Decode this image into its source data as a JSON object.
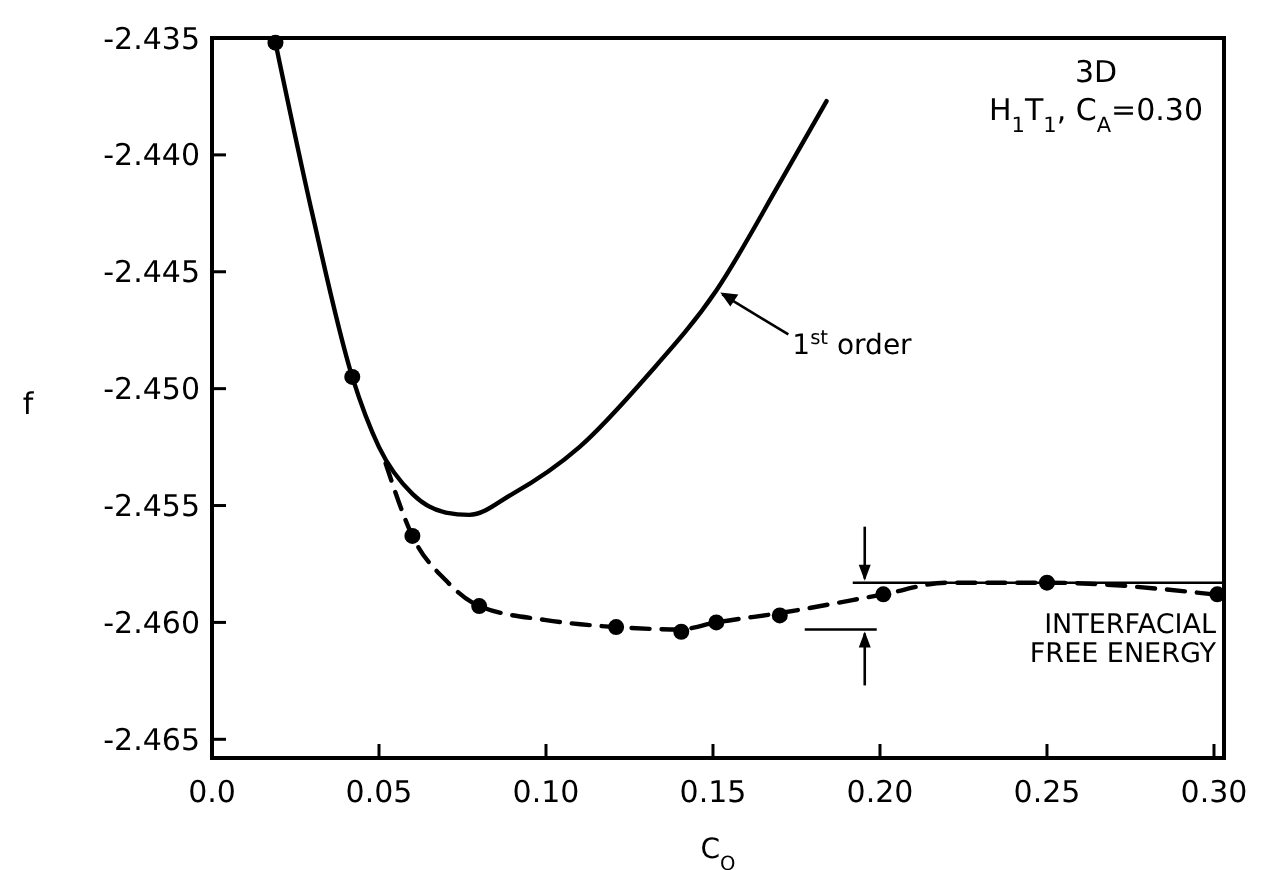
{
  "chart_data": {
    "type": "line",
    "xlabel": "C$_{O}$",
    "ylabel": "f",
    "xlim": [
      0,
      0.303
    ],
    "ylim": [
      -2.4658,
      -2.435
    ],
    "xticks": [
      {
        "value": 0,
        "label": "0.0"
      },
      {
        "value": 0.05,
        "label": "0.05"
      },
      {
        "value": 0.1,
        "label": "0.10"
      },
      {
        "value": 0.15,
        "label": "0.15"
      },
      {
        "value": 0.2,
        "label": "0.20"
      },
      {
        "value": 0.25,
        "label": "0.25"
      },
      {
        "value": 0.3,
        "label": "0.30"
      }
    ],
    "yticks": [
      {
        "value": -2.435,
        "label": "-2.435"
      },
      {
        "value": -2.44,
        "label": "-2.440"
      },
      {
        "value": -2.445,
        "label": "-2.445"
      },
      {
        "value": -2.45,
        "label": "-2.450"
      },
      {
        "value": -2.455,
        "label": "-2.455"
      },
      {
        "value": -2.46,
        "label": "-2.460"
      },
      {
        "value": -2.465,
        "label": "-2.465"
      }
    ],
    "grid": false,
    "series": [
      {
        "type": "line",
        "color": "#000000",
        "line_style": "solid",
        "marker": "none",
        "x": [
          0.019,
          0.03,
          0.042,
          0.05,
          0.06,
          0.07,
          0.077,
          0.09,
          0.11,
          0.13,
          0.151,
          0.17,
          0.184
        ],
        "values": [
          -2.4352,
          -2.4425,
          -2.4495,
          -2.4525,
          -2.4545,
          -2.4553,
          -2.4554,
          -2.4545,
          -2.4525,
          -2.4495,
          -2.4458,
          -2.4412,
          -2.4377
        ]
      },
      {
        "type": "line",
        "color": "#000000",
        "line_style": "dashed",
        "marker": "none",
        "x": [
          0.052,
          0.06,
          0.07,
          0.08,
          0.1,
          0.121,
          0.14,
          0.151,
          0.17,
          0.201,
          0.22,
          0.25,
          0.3
        ],
        "values": [
          -2.4532,
          -2.4563,
          -2.4582,
          -2.4593,
          -2.4599,
          -2.4602,
          -2.4603,
          -2.46,
          -2.4596,
          -2.4588,
          -2.4583,
          -2.4583,
          -2.4588
        ]
      },
      {
        "type": "scatter",
        "color": "#000000",
        "marker": "circle",
        "x": [
          0.019,
          0.042,
          0.06,
          0.08,
          0.121,
          0.1405,
          0.151,
          0.17,
          0.201,
          0.25,
          0.301
        ],
        "values": [
          -2.4352,
          -2.4495,
          -2.4563,
          -2.4593,
          -2.4602,
          -2.4604,
          -2.46,
          -2.4597,
          -2.4588,
          -2.4583,
          -2.4588
        ]
      }
    ],
    "annotations": [
      "3D",
      "H$_{1}$T$_{1}$, C$_{A}$=0.30",
      {
        "text": "1$^{st}$ order",
        "x": 0.151,
        "y": -2.4458
      },
      "INTERFACIAL FREE ENERGY"
    ]
  }
}
